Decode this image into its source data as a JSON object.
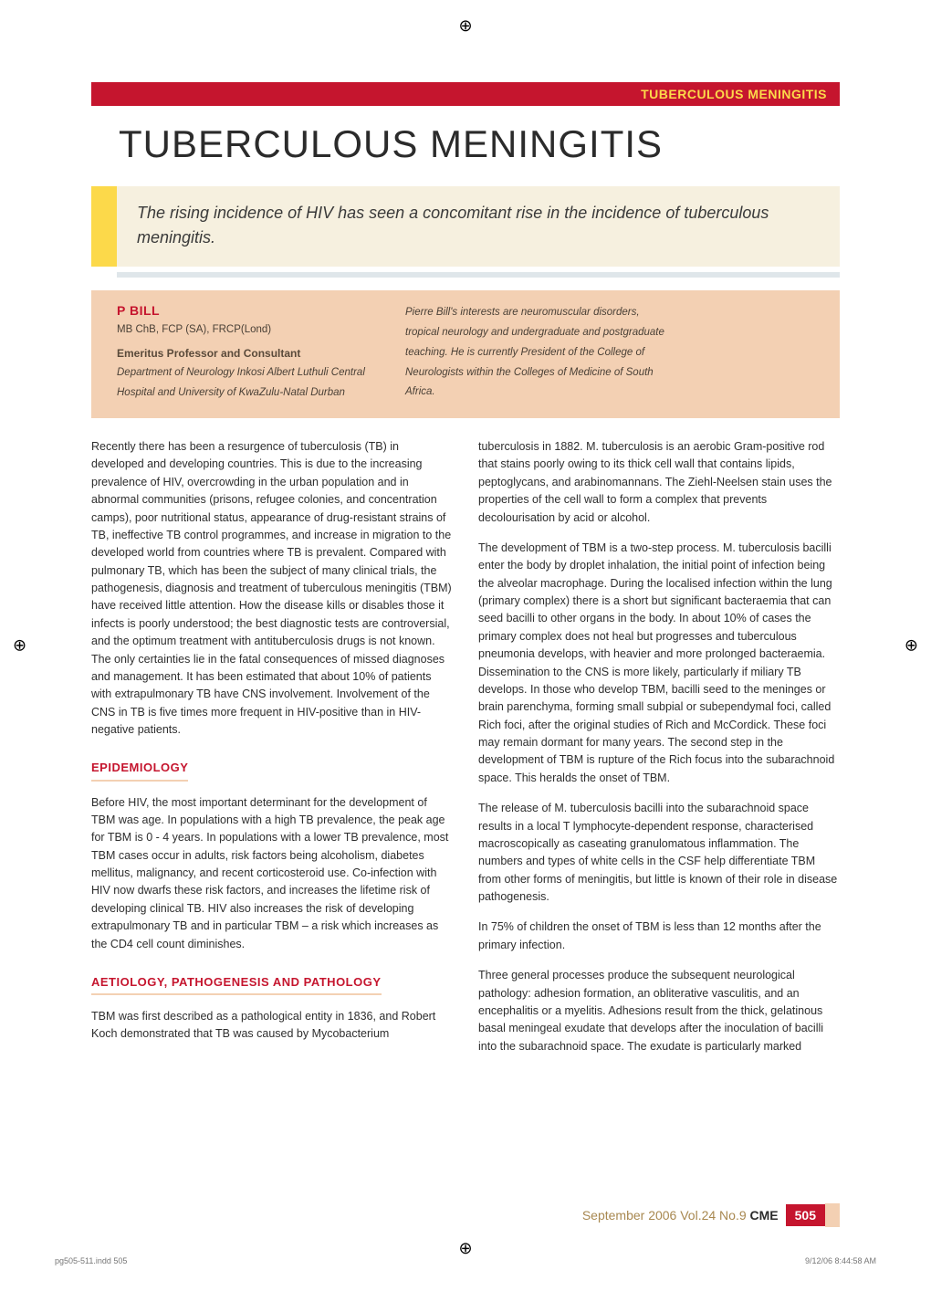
{
  "colors": {
    "brand_red": "#c5152e",
    "brand_yellow": "#fcd94a",
    "peach": "#f3d0b3",
    "cream": "#f6f0df",
    "grey_bar": "#dfe6ea",
    "gold_text": "#a88850",
    "body_text": "#2e2e2e"
  },
  "header": {
    "section_label": "TUBERCULOUS MENINGITIS"
  },
  "title": "TUBERCULOUS MENINGITIS",
  "callout": "The rising incidence of HIV has seen a concomitant rise in the incidence of tuberculous meningitis.",
  "author": {
    "name": "P BILL",
    "credentials": "MB ChB, FCP (SA), FRCP(Lond)",
    "role": "Emeritus Professor and Consultant",
    "affiliation": "Department of Neurology\nInkosi Albert Luthuli Central Hospital and University of KwaZulu-Natal\nDurban",
    "bio": "Pierre Bill's interests are neuromuscular disorders, tropical neurology and undergraduate and postgraduate teaching. He is currently President of the College of Neurologists within the Colleges of Medicine of South Africa."
  },
  "body": {
    "intro": "Recently there has been a resurgence of tuberculosis (TB) in developed and developing countries. This is due to the increasing prevalence of HIV, overcrowding in the urban population and in abnormal communities (prisons, refugee colonies, and concentration camps), poor nutritional status, appearance of drug-resistant strains of TB, ineffective TB control programmes, and increase in migration to the developed world from countries where TB is prevalent. Compared with pulmonary TB, which has been the subject of many clinical trials, the pathogenesis, diagnosis and treatment of tuberculous meningitis (TBM) have received little attention. How the disease kills or disables those it infects is poorly understood; the best diagnostic tests are controversial, and the optimum treatment with antituberculosis drugs is not known. The only certainties lie in the fatal consequences of missed diagnoses and management. It has been estimated that about 10% of patients with extrapulmonary TB have CNS involvement. Involvement of the CNS in TB is five times more frequent in HIV-positive than in HIV-negative patients.",
    "sections": [
      {
        "heading": "EPIDEMIOLOGY",
        "paragraphs": [
          "Before HIV, the most important determinant for the development of TBM was age. In populations with a high TB prevalence, the peak age for TBM is 0 - 4 years. In populations with a lower TB prevalence, most TBM cases occur in adults, risk factors being alcoholism, diabetes mellitus, malignancy, and recent corticosteroid use. Co-infection with HIV now dwarfs these risk factors, and increases the lifetime risk of developing clinical TB. HIV also increases the risk of developing extrapulmonary TB and in particular TBM – a risk which increases as the CD4 cell count diminishes."
        ]
      },
      {
        "heading": "AETIOLOGY, PATHOGENESIS AND PATHOLOGY",
        "paragraphs": [
          "TBM was first described as a pathological entity in 1836, and Robert Koch demonstrated that TB was caused by Mycobacterium tuberculosis in 1882. M. tuberculosis is an aerobic Gram-positive rod that stains poorly owing to its thick cell wall that contains lipids, peptoglycans, and arabinomannans. The Ziehl-Neelsen stain uses the properties of the cell wall to form a complex that prevents decolourisation by acid or alcohol.",
          "The development of TBM is a two-step process. M. tuberculosis bacilli enter the body by droplet inhalation, the initial point of infection being the alveolar macrophage. During the localised infection within the lung (primary complex) there is a short but significant bacteraemia that can seed bacilli to other organs in the body.  In about 10% of cases the primary complex does not heal but progresses and tuberculous pneumonia develops, with heavier and more prolonged bacteraemia. Dissemination to the CNS is more likely, particularly if miliary TB develops. In those who develop TBM, bacilli seed to the meninges or brain parenchyma, forming small subpial or subependymal foci, called Rich foci, after the original studies of Rich and McCordick. These foci may remain dormant for many years. The second step in the development of TBM is rupture of the Rich focus into the subarachnoid space. This heralds the onset of TBM.",
          "The release of M. tuberculosis bacilli into the subarachnoid space results in a local T lymphocyte-dependent response, characterised macroscopically as caseating granulomatous inflammation. The numbers and types of white cells in the CSF help differentiate TBM from other forms of meningitis, but little is known of their role in disease pathogenesis.",
          "In 75% of children the onset of TBM is less than 12 months after the primary infection.",
          "Three general processes produce the subsequent neurological pathology: adhesion formation, an obliterative vasculitis, and an encephalitis or a myelitis. Adhesions result from the thick, gelatinous basal meningeal exudate that develops after the inoculation of bacilli into the subarachnoid space. The exudate is particularly marked"
        ]
      }
    ]
  },
  "footer": {
    "issue": "September  2006  Vol.24  No.9",
    "journal": "CME",
    "page": "505"
  },
  "imprint": {
    "left": "pg505-511.indd   505",
    "right": "9/12/06   8:44:58 AM"
  }
}
